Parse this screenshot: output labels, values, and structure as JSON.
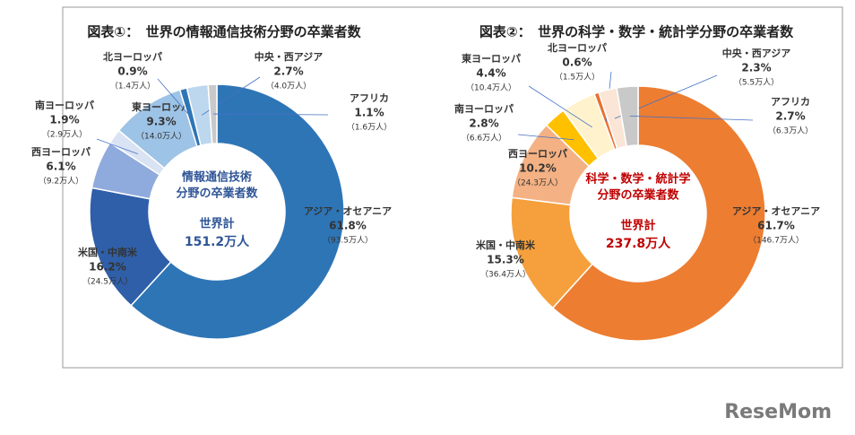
{
  "chart_data": [
    {
      "type": "pie",
      "title": "図表①：　世界の情報通信技術分野の卒業者数",
      "center_text": [
        "情報通信技術",
        "分野の卒業者数",
        "世界計",
        "151.2万人"
      ],
      "center_color": "#2f5597",
      "categories": [
        "アジア・オセアニア",
        "米国・中南米",
        "西ヨーロッパ",
        "南ヨーロッパ",
        "東ヨーロッパ",
        "北ヨーロッパ",
        "中央・西アジア",
        "アフリカ"
      ],
      "values": [
        61.8,
        16.2,
        6.1,
        1.9,
        9.3,
        0.9,
        2.7,
        1.1
      ],
      "value_labels": [
        "61.8%",
        "16.2%",
        "6.1%",
        "1.9%",
        "9.3%",
        "0.9%",
        "2.7%",
        "1.1%"
      ],
      "counts": [
        93.5,
        24.5,
        9.2,
        2.9,
        14.0,
        1.4,
        4.0,
        1.6
      ],
      "count_labels": [
        "（93.5万人）",
        "（24.5万人）",
        "（9.2万人）",
        "（2.9万人）",
        "（14.0万人）",
        "（1.4万人）",
        "（4.0万人）",
        "（1.6万人）"
      ],
      "colors": [
        "#2e75b6",
        "#2f5fa8",
        "#8faadc",
        "#dae3f3",
        "#9dc3e6",
        "#2e75b6",
        "#bdd7ee",
        "#c9c9c9"
      ]
    },
    {
      "type": "pie",
      "title": "図表②：　世界の科学・数学・統計学分野の卒業者数",
      "center_text": [
        "科学・数学・統計学",
        "分野の卒業者数",
        "世界計",
        "237.8万人"
      ],
      "center_color": "#c00000",
      "categories": [
        "アジア・オセアニア",
        "米国・中南米",
        "西ヨーロッパ",
        "南ヨーロッパ",
        "東ヨーロッパ",
        "北ヨーロッパ",
        "中央・西アジア",
        "アフリカ"
      ],
      "values": [
        61.7,
        15.3,
        10.2,
        2.8,
        4.4,
        0.6,
        2.3,
        2.7
      ],
      "value_labels": [
        "61.7%",
        "15.3%",
        "10.2%",
        "2.8%",
        "4.4%",
        "0.6%",
        "2.3%",
        "2.7%"
      ],
      "counts": [
        146.7,
        36.4,
        24.3,
        6.6,
        10.4,
        1.5,
        5.5,
        6.3
      ],
      "count_labels": [
        "（146.7万人）",
        "（36.4万人）",
        "（24.3万人）",
        "（6.6万人）",
        "（10.4万人）",
        "（1.5万人）",
        "（5.5万人）",
        "（6.3万人）"
      ],
      "colors": [
        "#ed7d31",
        "#f5a03c",
        "#f4b183",
        "#ffc000",
        "#fff2cc",
        "#e97132",
        "#fbe5d6",
        "#c9c9c9"
      ]
    }
  ],
  "logo": "ReseMom"
}
